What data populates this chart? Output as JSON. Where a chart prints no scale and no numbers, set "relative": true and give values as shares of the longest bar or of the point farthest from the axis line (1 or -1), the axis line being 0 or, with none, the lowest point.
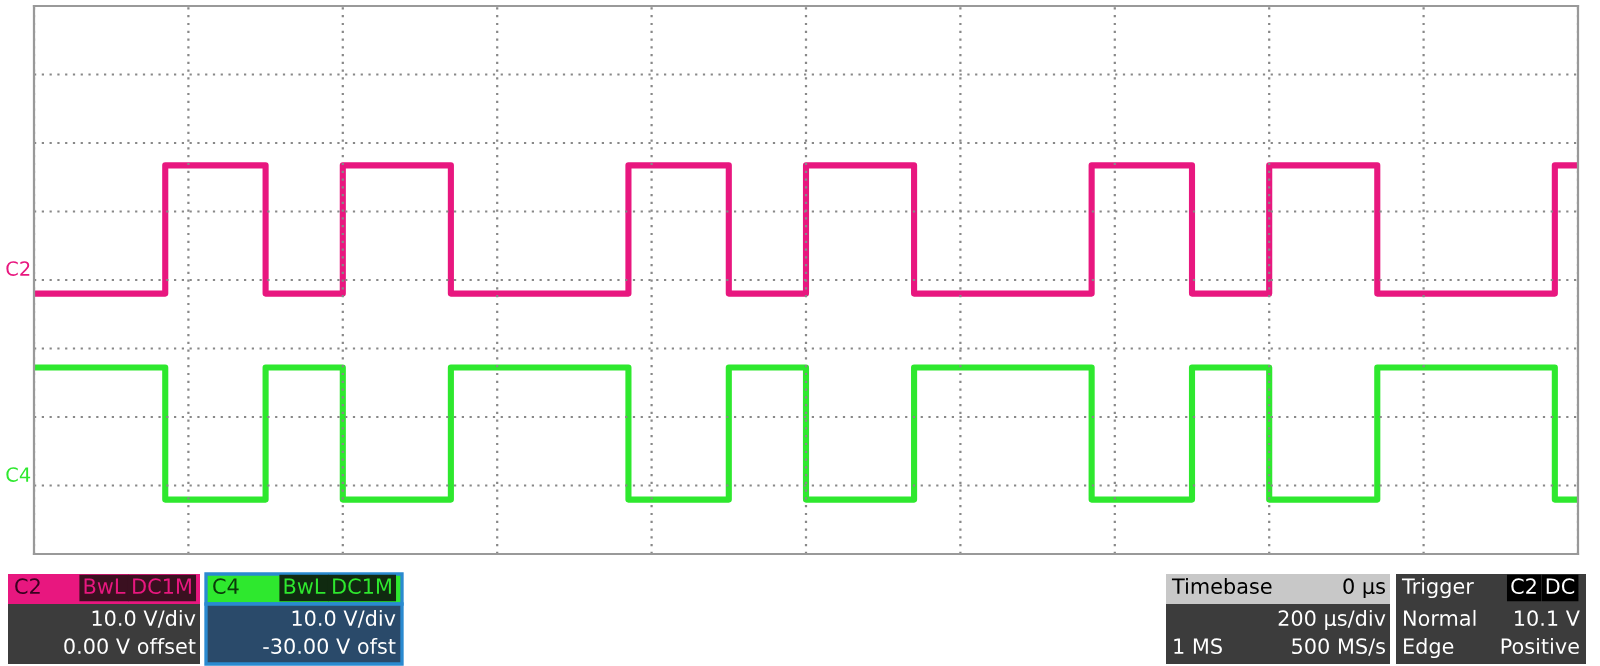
{
  "chart_data": {
    "type": "step",
    "relative": true,
    "grid": true,
    "legend": false,
    "categories": [
      null,
      null,
      null,
      null,
      null,
      null,
      null,
      null,
      null,
      null,
      null,
      null,
      null,
      null,
      null,
      null,
      null,
      null,
      null,
      null,
      null,
      null,
      null,
      null,
      null,
      null,
      null,
      null,
      null,
      null,
      null,
      null,
      null,
      null,
      null,
      null,
      null,
      null,
      null,
      null,
      null,
      null,
      null,
      null,
      null,
      null,
      null,
      null,
      null,
      null,
      null,
      null,
      null,
      null,
      null,
      null,
      null,
      null,
      null,
      null,
      null,
      null,
      null,
      null,
      null,
      null,
      null,
      null,
      null,
      null,
      null,
      null,
      null,
      null,
      null,
      null,
      null,
      null,
      null,
      null,
      null,
      null,
      null,
      null,
      null,
      null,
      null,
      null,
      null,
      null,
      null,
      null,
      null,
      null,
      null,
      null,
      null,
      null,
      null,
      null,
      null,
      null,
      null,
      null,
      null,
      null,
      null,
      null,
      null,
      null,
      null,
      null,
      null,
      null,
      null,
      null,
      null,
      null,
      null,
      null,
      null,
      null,
      null,
      null,
      null,
      null,
      null,
      null,
      null,
      null,
      null,
      null,
      null,
      null,
      null,
      null,
      null,
      null,
      null,
      null,
      null,
      null,
      null,
      null,
      null,
      null,
      null,
      null,
      null,
      null,
      null,
      null,
      null,
      null,
      null,
      null,
      null,
      null,
      null,
      null,
      null,
      null,
      null,
      null,
      null,
      null,
      null,
      null,
      null,
      null,
      null,
      null,
      null,
      null,
      null,
      null,
      null,
      null,
      null,
      null,
      null,
      null,
      null,
      null,
      null,
      null,
      null,
      null,
      null,
      null,
      null,
      null,
      null,
      null,
      null,
      null,
      null,
      null,
      null,
      null
    ],
    "series": [
      {
        "name": "C2",
        "color": "#e8177f",
        "values": [
          0.67,
          0.67,
          0.67,
          0.67,
          0.67,
          0.67,
          0.67,
          0.67,
          0.67,
          0.67,
          0.67,
          0.67,
          0.67,
          0.67,
          0.67,
          0.67,
          0.67,
          1,
          1,
          1,
          1,
          1,
          1,
          1,
          1,
          1,
          1,
          1,
          1,
          1,
          0.67,
          0.67,
          0.67,
          0.67,
          0.67,
          0.67,
          0.67,
          0.67,
          0.67,
          0.67,
          1,
          1,
          1,
          1,
          1,
          1,
          1,
          1,
          1,
          1,
          1,
          1,
          1,
          1,
          0.67,
          0.67,
          0.67,
          0.67,
          0.67,
          0.67,
          0.67,
          0.67,
          0.67,
          0.67,
          0.67,
          0.67,
          0.67,
          0.67,
          0.67,
          0.67,
          0.67,
          0.67,
          0.67,
          0.67,
          0.67,
          0.67,
          0.67,
          1,
          1,
          1,
          1,
          1,
          1,
          1,
          1,
          1,
          1,
          1,
          1,
          1,
          0.67,
          0.67,
          0.67,
          0.67,
          0.67,
          0.67,
          0.67,
          0.67,
          0.67,
          0.67,
          1,
          1,
          1,
          1,
          1,
          1,
          1,
          1,
          1,
          1,
          1,
          1,
          1,
          1,
          0.67,
          0.67,
          0.67,
          0.67,
          0.67,
          0.67,
          0.67,
          0.67,
          0.67,
          0.67,
          0.67,
          0.67,
          0.67,
          0.67,
          0.67,
          0.67,
          0.67,
          0.67,
          0.67,
          0.67,
          0.67,
          0.67,
          0.67,
          1,
          1,
          1,
          1,
          1,
          1,
          1,
          1,
          1,
          1,
          1,
          1,
          1,
          0.67,
          0.67,
          0.67,
          0.67,
          0.67,
          0.67,
          0.67,
          0.67,
          0.67,
          0.67,
          1,
          1,
          1,
          1,
          1,
          1,
          1,
          1,
          1,
          1,
          1,
          1,
          1,
          1,
          0.67,
          0.67,
          0.67,
          0.67,
          0.67,
          0.67,
          0.67,
          0.67,
          0.67,
          0.67,
          0.67,
          0.67,
          0.67,
          0.67,
          0.67,
          0.67,
          0.67,
          0.67,
          0.67,
          0.67,
          0.67,
          0.67,
          0.67,
          1,
          1,
          1
        ]
      },
      {
        "name": "C4",
        "color": "#2ee82e",
        "values": [
          0.48,
          0.48,
          0.48,
          0.48,
          0.48,
          0.48,
          0.48,
          0.48,
          0.48,
          0.48,
          0.48,
          0.48,
          0.48,
          0.48,
          0.48,
          0.48,
          0.48,
          0.14,
          0.14,
          0.14,
          0.14,
          0.14,
          0.14,
          0.14,
          0.14,
          0.14,
          0.14,
          0.14,
          0.14,
          0.14,
          0.48,
          0.48,
          0.48,
          0.48,
          0.48,
          0.48,
          0.48,
          0.48,
          0.48,
          0.48,
          0.14,
          0.14,
          0.14,
          0.14,
          0.14,
          0.14,
          0.14,
          0.14,
          0.14,
          0.14,
          0.14,
          0.14,
          0.14,
          0.14,
          0.48,
          0.48,
          0.48,
          0.48,
          0.48,
          0.48,
          0.48,
          0.48,
          0.48,
          0.48,
          0.48,
          0.48,
          0.48,
          0.48,
          0.48,
          0.48,
          0.48,
          0.48,
          0.48,
          0.48,
          0.48,
          0.48,
          0.48,
          0.14,
          0.14,
          0.14,
          0.14,
          0.14,
          0.14,
          0.14,
          0.14,
          0.14,
          0.14,
          0.14,
          0.14,
          0.14,
          0.48,
          0.48,
          0.48,
          0.48,
          0.48,
          0.48,
          0.48,
          0.48,
          0.48,
          0.48,
          0.14,
          0.14,
          0.14,
          0.14,
          0.14,
          0.14,
          0.14,
          0.14,
          0.14,
          0.14,
          0.14,
          0.14,
          0.14,
          0.14,
          0.48,
          0.48,
          0.48,
          0.48,
          0.48,
          0.48,
          0.48,
          0.48,
          0.48,
          0.48,
          0.48,
          0.48,
          0.48,
          0.48,
          0.48,
          0.48,
          0.48,
          0.48,
          0.48,
          0.48,
          0.48,
          0.48,
          0.48,
          0.14,
          0.14,
          0.14,
          0.14,
          0.14,
          0.14,
          0.14,
          0.14,
          0.14,
          0.14,
          0.14,
          0.14,
          0.14,
          0.48,
          0.48,
          0.48,
          0.48,
          0.48,
          0.48,
          0.48,
          0.48,
          0.48,
          0.48,
          0.14,
          0.14,
          0.14,
          0.14,
          0.14,
          0.14,
          0.14,
          0.14,
          0.14,
          0.14,
          0.14,
          0.14,
          0.14,
          0.14,
          0.48,
          0.48,
          0.48,
          0.48,
          0.48,
          0.48,
          0.48,
          0.48,
          0.48,
          0.48,
          0.48,
          0.48,
          0.48,
          0.48,
          0.48,
          0.48,
          0.48,
          0.48,
          0.48,
          0.48,
          0.48,
          0.48,
          0.48,
          0.14,
          0.14,
          0.14
        ]
      }
    ],
    "annotations": [
      "C2",
      "BwL",
      "DC1M",
      "10.0 V/div",
      "0.00 V offset",
      "C4",
      "BwL",
      "DC1M",
      "10.0 V/div",
      "-30.00 V ofst",
      "Timebase",
      "0 µs",
      "200 µs/div",
      "1 MS",
      "500 MS/s",
      "Trigger",
      "C2",
      "DC",
      "Normal",
      "10.1 V",
      "Edge",
      "Positive"
    ]
  }
}
